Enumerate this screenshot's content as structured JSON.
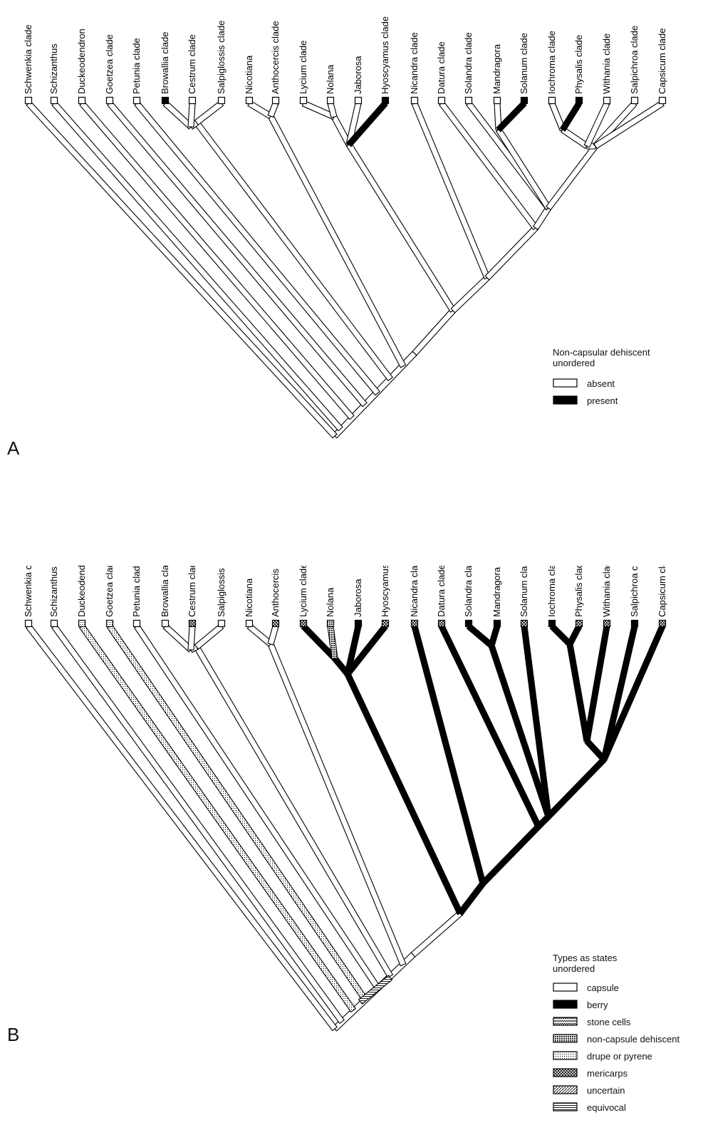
{
  "taxa": [
    "Schwenkia clade",
    "Schizanthus",
    "Duckeodendron",
    "Goetzea clade",
    "Petunia clade",
    "Browallia clade",
    "Cestrum clade",
    "Salpiglossis clade",
    "Nicotiana",
    "Anthocercis clade",
    "Lycium clade",
    "Nolana",
    "Jaborosa",
    "Hyoscyamus clade",
    "Nicandra clade",
    "Datura clade",
    "Solandra clade",
    "Mandragora",
    "Solanum clade",
    "Iochroma clade",
    "Physalis clade",
    "Withania clade",
    "Salpichroa clade",
    "Capsicum clade"
  ],
  "panel_a": {
    "letter": "A",
    "legend_title_1": "Non-capsular dehiscent",
    "legend_title_2": "unordered",
    "states": [
      {
        "label": "absent",
        "pattern": "capsule"
      },
      {
        "label": "present",
        "pattern": "berry"
      }
    ],
    "tip_states": [
      "capsule",
      "capsule",
      "capsule",
      "capsule",
      "capsule",
      "berry",
      "capsule",
      "capsule",
      "capsule",
      "capsule",
      "capsule",
      "capsule",
      "capsule",
      "berry",
      "capsule",
      "capsule",
      "capsule",
      "capsule",
      "berry",
      "capsule",
      "berry",
      "capsule",
      "capsule",
      "capsule"
    ],
    "branch_states": {
      "hyoscyamus": "berry",
      "solanum": "berry",
      "physalis": "berry"
    }
  },
  "panel_b": {
    "letter": "B",
    "legend_title_1": "Types as states",
    "legend_title_2": "unordered",
    "states": [
      {
        "label": "capsule",
        "pattern": "capsule"
      },
      {
        "label": "berry",
        "pattern": "berry"
      },
      {
        "label": "stone cells",
        "pattern": "stone"
      },
      {
        "label": "non-capsule dehiscent",
        "pattern": "noncap"
      },
      {
        "label": "drupe or pyrene",
        "pattern": "drupe"
      },
      {
        "label": "mericarps",
        "pattern": "meri"
      },
      {
        "label": "uncertain",
        "pattern": "uncertain"
      },
      {
        "label": "equivocal",
        "pattern": "equivocal"
      }
    ],
    "tip_states": [
      "capsule",
      "capsule",
      "drupe",
      "drupe",
      "capsule",
      "capsule",
      "meri",
      "capsule",
      "capsule",
      "meri",
      "meri",
      "noncap",
      "berry",
      "meri",
      "meri",
      "meri",
      "berry",
      "berry",
      "meri",
      "berry",
      "meri",
      "meri",
      "berry",
      "meri"
    ],
    "berry_branches": [
      "lycium",
      "nolana-jaborosa",
      "jaborosa",
      "hyoscyamus",
      "lycium-clade-stem",
      "core-crown",
      "nicandra",
      "datura",
      "solandra-mandragora",
      "solandra",
      "mandragora",
      "solanum",
      "iochroma-physalis",
      "iochroma",
      "physalis",
      "withania",
      "salpichroa",
      "capsicum",
      "core-after-datura",
      "core-after-solandra",
      "capsicum-group",
      "capsicum-stem"
    ],
    "drupe_branches": [
      "duckeodendron",
      "goetzea"
    ],
    "noncap_branches": [
      "nolana"
    ],
    "equivocal_branches": [
      "base-equivocal"
    ]
  },
  "colors": {
    "line": "#000000",
    "paper": "#ffffff"
  }
}
